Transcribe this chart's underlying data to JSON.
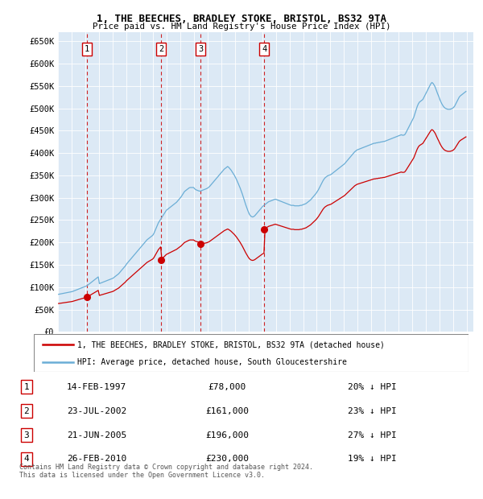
{
  "title1": "1, THE BEECHES, BRADLEY STOKE, BRISTOL, BS32 9TA",
  "title2": "Price paid vs. HM Land Registry's House Price Index (HPI)",
  "bg_color": "#dce9f5",
  "transactions": [
    {
      "num": 1,
      "date_label": "14-FEB-1997",
      "price": 78000,
      "pct": "20%",
      "x_year": 1997.12
    },
    {
      "num": 2,
      "date_label": "23-JUL-2002",
      "price": 161000,
      "pct": "23%",
      "x_year": 2002.56
    },
    {
      "num": 3,
      "date_label": "21-JUN-2005",
      "price": 196000,
      "pct": "27%",
      "x_year": 2005.47
    },
    {
      "num": 4,
      "date_label": "26-FEB-2010",
      "price": 230000,
      "pct": "19%",
      "x_year": 2010.15
    }
  ],
  "hpi_color": "#6baed6",
  "price_color": "#cc0000",
  "vline_color": "#cc0000",
  "legend_label_red": "1, THE BEECHES, BRADLEY STOKE, BRISTOL, BS32 9TA (detached house)",
  "legend_label_blue": "HPI: Average price, detached house, South Gloucestershire",
  "footer": "Contains HM Land Registry data © Crown copyright and database right 2024.\nThis data is licensed under the Open Government Licence v3.0.",
  "ylim": [
    0,
    670000
  ],
  "xlim_start": 1995.0,
  "xlim_end": 2025.5,
  "yticks": [
    0,
    50000,
    100000,
    150000,
    200000,
    250000,
    300000,
    350000,
    400000,
    450000,
    500000,
    550000,
    600000,
    650000
  ],
  "ytick_labels": [
    "£0",
    "£50K",
    "£100K",
    "£150K",
    "£200K",
    "£250K",
    "£300K",
    "£350K",
    "£400K",
    "£450K",
    "£500K",
    "£550K",
    "£600K",
    "£650K"
  ]
}
